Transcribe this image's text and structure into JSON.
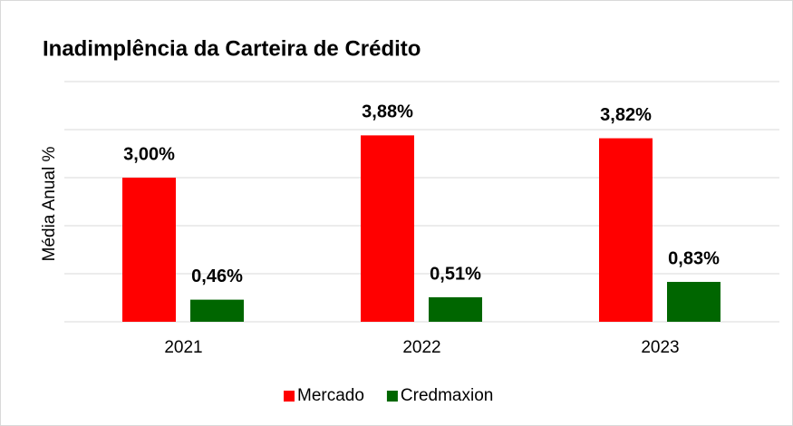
{
  "chart_data": {
    "type": "bar",
    "title": "Inadimplência da Carteira de Crédito",
    "y_label": "Média Anual %",
    "categories": [
      "2021",
      "2022",
      "2023"
    ],
    "series": [
      {
        "name": "Mercado",
        "color": "#ff0000",
        "values": [
          3.0,
          3.88,
          3.82
        ],
        "value_labels": [
          "3,00%",
          "3,88%",
          "3,82%"
        ]
      },
      {
        "name": "Credmaxion",
        "color": "#006600",
        "values": [
          0.46,
          0.51,
          0.83
        ],
        "value_labels": [
          "0,46%",
          "0,51%",
          "0,83%"
        ]
      }
    ],
    "ylim": [
      0,
      5
    ],
    "yticks": [
      0,
      1,
      2,
      3,
      4,
      5
    ],
    "grid": true,
    "legend": "bottom"
  }
}
